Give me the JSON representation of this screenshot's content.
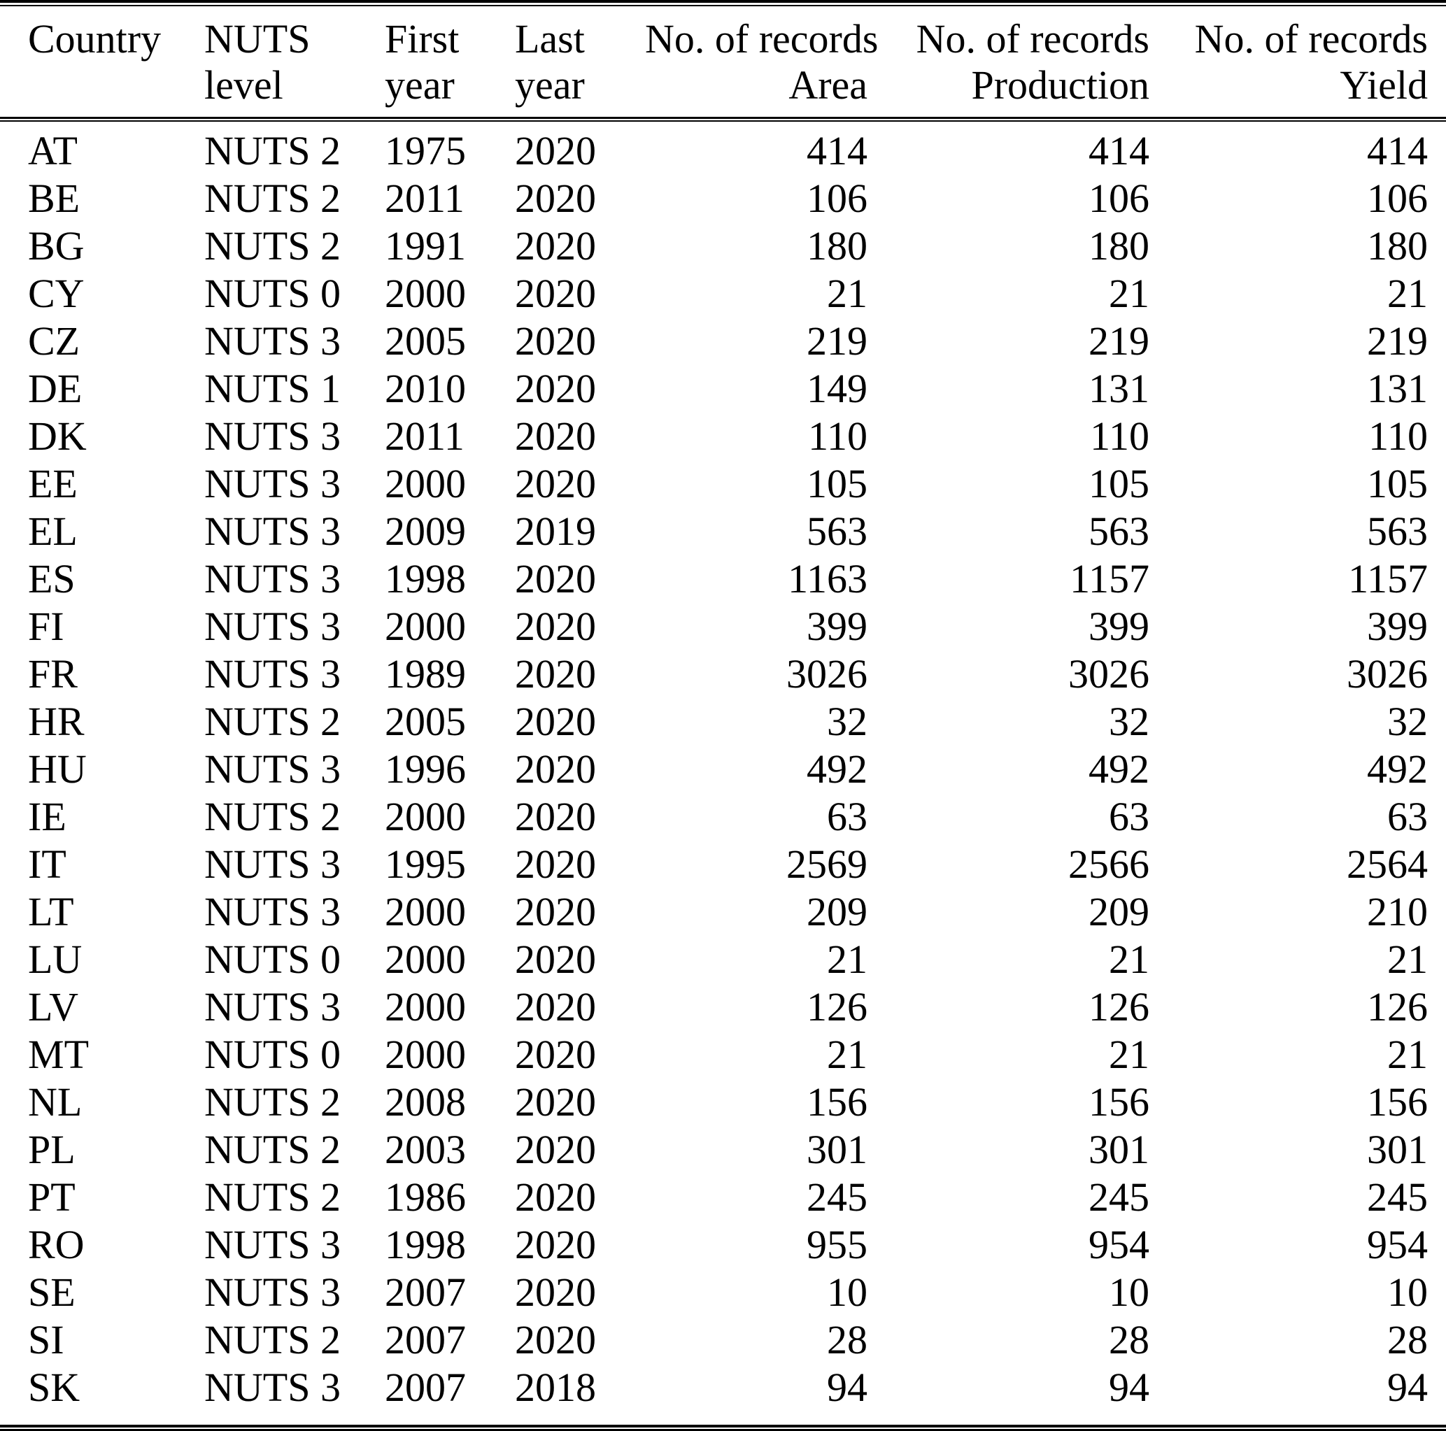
{
  "colors": {
    "text": "#000000",
    "background": "#ffffff",
    "rule": "#000000"
  },
  "table": {
    "columns": [
      {
        "id": "country",
        "line1": "Country",
        "line2": "",
        "align": "left"
      },
      {
        "id": "nuts-level",
        "line1": "NUTS",
        "line2": "level",
        "align": "left"
      },
      {
        "id": "first-year",
        "line1": "First",
        "line2": "year",
        "align": "left"
      },
      {
        "id": "last-year",
        "line1": "Last",
        "line2": "year",
        "align": "left"
      },
      {
        "id": "records-area",
        "line1": "No. of records",
        "line2": "Area",
        "align": "right"
      },
      {
        "id": "records-production",
        "line1": "No. of records",
        "line2": "Production",
        "align": "right"
      },
      {
        "id": "records-yield",
        "line1": "No. of records",
        "line2": "Yield",
        "align": "right"
      }
    ],
    "rows": [
      [
        "AT",
        "NUTS 2",
        "1975",
        "2020",
        "414",
        "414",
        "414"
      ],
      [
        "BE",
        "NUTS 2",
        "2011",
        "2020",
        "106",
        "106",
        "106"
      ],
      [
        "BG",
        "NUTS 2",
        "1991",
        "2020",
        "180",
        "180",
        "180"
      ],
      [
        "CY",
        "NUTS 0",
        "2000",
        "2020",
        "21",
        "21",
        "21"
      ],
      [
        "CZ",
        "NUTS 3",
        "2005",
        "2020",
        "219",
        "219",
        "219"
      ],
      [
        "DE",
        "NUTS 1",
        "2010",
        "2020",
        "149",
        "131",
        "131"
      ],
      [
        "DK",
        "NUTS 3",
        "2011",
        "2020",
        "110",
        "110",
        "110"
      ],
      [
        "EE",
        "NUTS 3",
        "2000",
        "2020",
        "105",
        "105",
        "105"
      ],
      [
        "EL",
        "NUTS 3",
        "2009",
        "2019",
        "563",
        "563",
        "563"
      ],
      [
        "ES",
        "NUTS 3",
        "1998",
        "2020",
        "1163",
        "1157",
        "1157"
      ],
      [
        "FI",
        "NUTS 3",
        "2000",
        "2020",
        "399",
        "399",
        "399"
      ],
      [
        "FR",
        "NUTS 3",
        "1989",
        "2020",
        "3026",
        "3026",
        "3026"
      ],
      [
        "HR",
        "NUTS 2",
        "2005",
        "2020",
        "32",
        "32",
        "32"
      ],
      [
        "HU",
        "NUTS 3",
        "1996",
        "2020",
        "492",
        "492",
        "492"
      ],
      [
        "IE",
        "NUTS 2",
        "2000",
        "2020",
        "63",
        "63",
        "63"
      ],
      [
        "IT",
        "NUTS 3",
        "1995",
        "2020",
        "2569",
        "2566",
        "2564"
      ],
      [
        "LT",
        "NUTS 3",
        "2000",
        "2020",
        "209",
        "209",
        "210"
      ],
      [
        "LU",
        "NUTS 0",
        "2000",
        "2020",
        "21",
        "21",
        "21"
      ],
      [
        "LV",
        "NUTS 3",
        "2000",
        "2020",
        "126",
        "126",
        "126"
      ],
      [
        "MT",
        "NUTS 0",
        "2000",
        "2020",
        "21",
        "21",
        "21"
      ],
      [
        "NL",
        "NUTS 2",
        "2008",
        "2020",
        "156",
        "156",
        "156"
      ],
      [
        "PL",
        "NUTS 2",
        "2003",
        "2020",
        "301",
        "301",
        "301"
      ],
      [
        "PT",
        "NUTS 2",
        "1986",
        "2020",
        "245",
        "245",
        "245"
      ],
      [
        "RO",
        "NUTS 3",
        "1998",
        "2020",
        "955",
        "954",
        "954"
      ],
      [
        "SE",
        "NUTS 3",
        "2007",
        "2020",
        "10",
        "10",
        "10"
      ],
      [
        "SI",
        "NUTS 2",
        "2007",
        "2020",
        "28",
        "28",
        "28"
      ],
      [
        "SK",
        "NUTS 3",
        "2007",
        "2018",
        "94",
        "94",
        "94"
      ]
    ]
  }
}
